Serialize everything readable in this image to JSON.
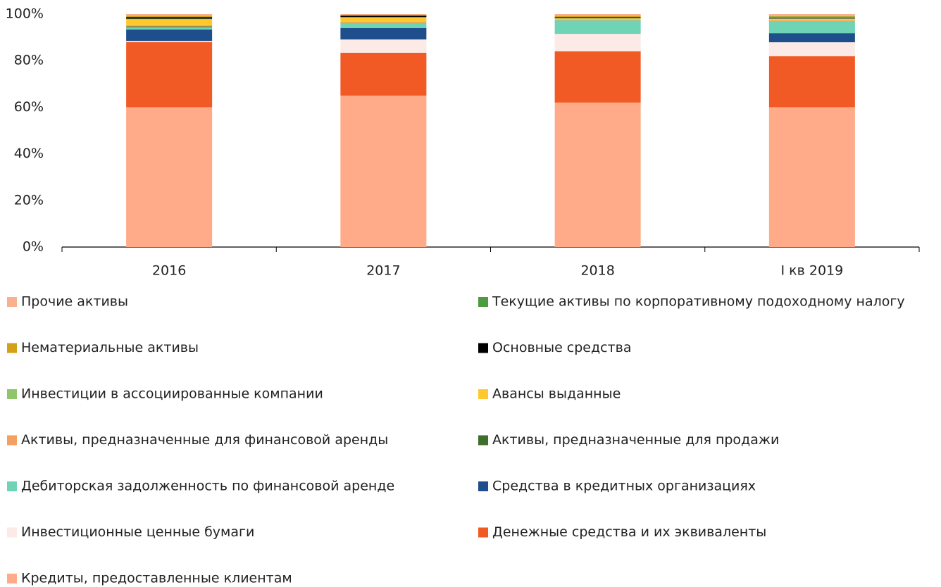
{
  "chart_data": {
    "type": "stacked_bar",
    "categories": [
      "2016",
      "2017",
      "2018",
      "I кв 2019"
    ],
    "ylim": [
      0,
      100
    ],
    "yticks": [
      {
        "value": 0,
        "label": "0%"
      },
      {
        "value": 20,
        "label": "20%"
      },
      {
        "value": 40,
        "label": "40%"
      },
      {
        "value": 60,
        "label": "60%"
      },
      {
        "value": 80,
        "label": "80%"
      },
      {
        "value": 100,
        "label": "100%"
      }
    ],
    "grid": false,
    "series": [
      {
        "name": "Прочие активы",
        "color": "#f9b08e",
        "values": [
          0.7,
          0.3,
          0.7,
          0.9
        ]
      },
      {
        "name": "Текущие активы по корпоративному подоходному налогу",
        "color": "#4e9a3e",
        "values": [
          0.1,
          0.1,
          0.1,
          0.1
        ]
      },
      {
        "name": "Нематериальные активы",
        "color": "#d4a017",
        "values": [
          0.5,
          0.3,
          0.5,
          0.6
        ]
      },
      {
        "name": "Основные средства",
        "color": "#000000",
        "values": [
          0.7,
          0.6,
          0.4,
          0.3
        ]
      },
      {
        "name": "Инвестиции в ассоциированные компании",
        "color": "#8fc66b",
        "values": [
          0.3,
          0.2,
          0.2,
          0.2
        ]
      },
      {
        "name": "Авансы выданные",
        "color": "#ffc92e",
        "values": [
          2.5,
          2,
          0.5,
          0.6
        ]
      },
      {
        "name": "Активы, предназначенные для финансовой аренды",
        "color": "#f4a060",
        "values": [
          0.5,
          0.3,
          0.3,
          0.3
        ]
      },
      {
        "name": "Активы, предназначенные для продажи",
        "color": "#3f6e2a",
        "values": [
          0.3,
          0.1,
          0,
          0
        ]
      },
      {
        "name": "Дебиторская задолженность по финансовой аренде",
        "color": "#6fd3b5",
        "values": [
          1,
          2.1,
          5.8,
          5.2
        ]
      },
      {
        "name": "Средства в кредитных организациях",
        "color": "#1f4e8c",
        "values": [
          4.9,
          4.9,
          0,
          3.9
        ]
      },
      {
        "name": "Инвестиционные ценные бумаги",
        "color": "#fbeae6",
        "values": [
          0.5,
          5.7,
          7.5,
          6
        ]
      },
      {
        "name": "Денежные средства и их эквиваленты",
        "color": "#f15a24",
        "values": [
          28,
          18.4,
          22,
          21.9
        ]
      },
      {
        "name": "Кредиты, предоставленные клиентам",
        "color": "#ffaa88",
        "values": [
          60,
          65,
          62,
          60
        ]
      }
    ]
  }
}
